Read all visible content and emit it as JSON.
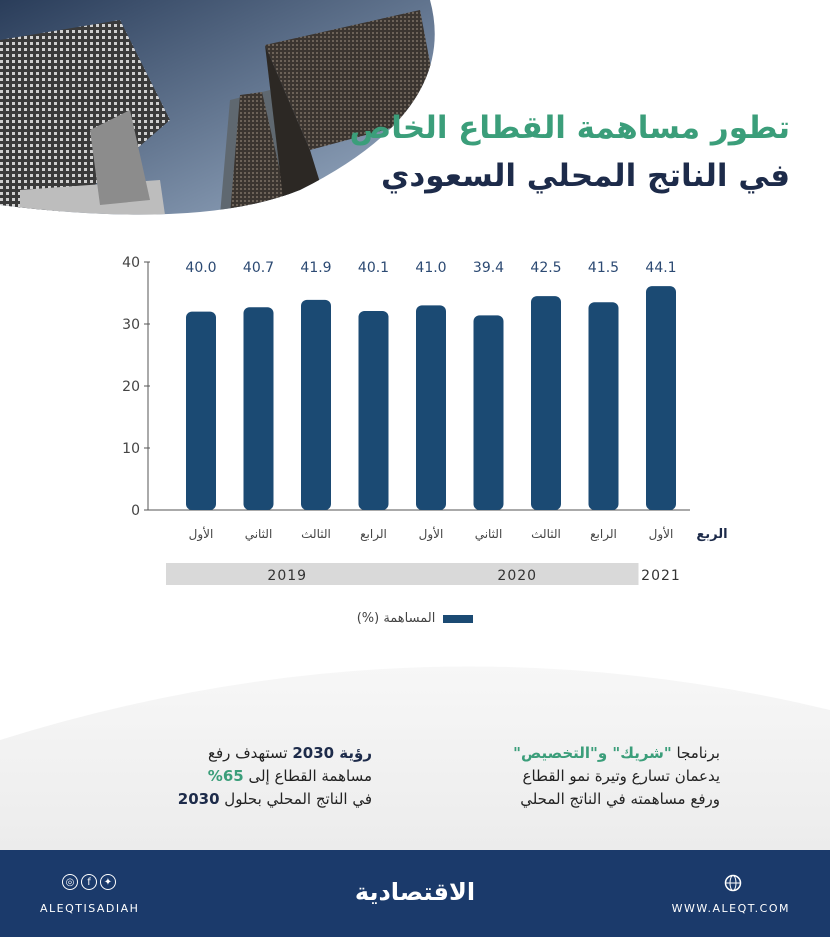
{
  "title": {
    "line1": "تطور مساهمة القطاع الخاص",
    "line2": "في الناتج المحلي السعودي"
  },
  "chart_data": {
    "type": "bar",
    "xlabel": "الربع",
    "categories": [
      "الأول",
      "الثاني",
      "الثالث",
      "الرابع",
      "الأول",
      "الثاني",
      "الثالث",
      "الرابع",
      "الأول"
    ],
    "years": [
      {
        "label": "2019",
        "span": [
          0,
          3
        ]
      },
      {
        "label": "2020",
        "span": [
          4,
          7
        ]
      },
      {
        "label": "2021",
        "span": [
          8,
          8
        ]
      }
    ],
    "series": [
      {
        "name": "المساهمة (%)",
        "values": [
          40.0,
          40.7,
          41.9,
          40.1,
          41.0,
          39.4,
          42.5,
          41.5,
          44.1
        ]
      }
    ],
    "value_labels": [
      "40.0",
      "40.7",
      "41.9",
      "40.1",
      "41.0",
      "39.4",
      "42.5",
      "41.5",
      "44.1"
    ],
    "yticks": [
      0,
      10,
      20,
      30,
      40
    ],
    "ylim": [
      0,
      40
    ],
    "grid": false,
    "legend": "bottom-center",
    "colors": {
      "bar": "#1b4a73",
      "label": "#2c4a73",
      "year_band": "#d9d9d9"
    }
  },
  "notes": {
    "right": {
      "pre": "برنامجا ",
      "highlight": "\"شريك\" و\"التخصيص\"",
      "line2": "يدعمان تسارع وتيرة نمو القطاع",
      "line3": "ورفع مساهمته في الناتج المحلي"
    },
    "left": {
      "bold1": "رؤية 2030",
      "rest1": " تستهدف رفع",
      "line2a": "مساهمة القطاع إلى ",
      "highlight": "65%",
      "line3a": "في الناتج المحلي بحلول ",
      "bold3": "2030"
    }
  },
  "footer": {
    "brand": "الاقتصادية",
    "site": "WWW.ALEQT.COM",
    "handle": "ALEQTISADIAH",
    "icons": [
      "globe-icon",
      "instagram-icon",
      "facebook-icon",
      "twitter-icon"
    ]
  }
}
